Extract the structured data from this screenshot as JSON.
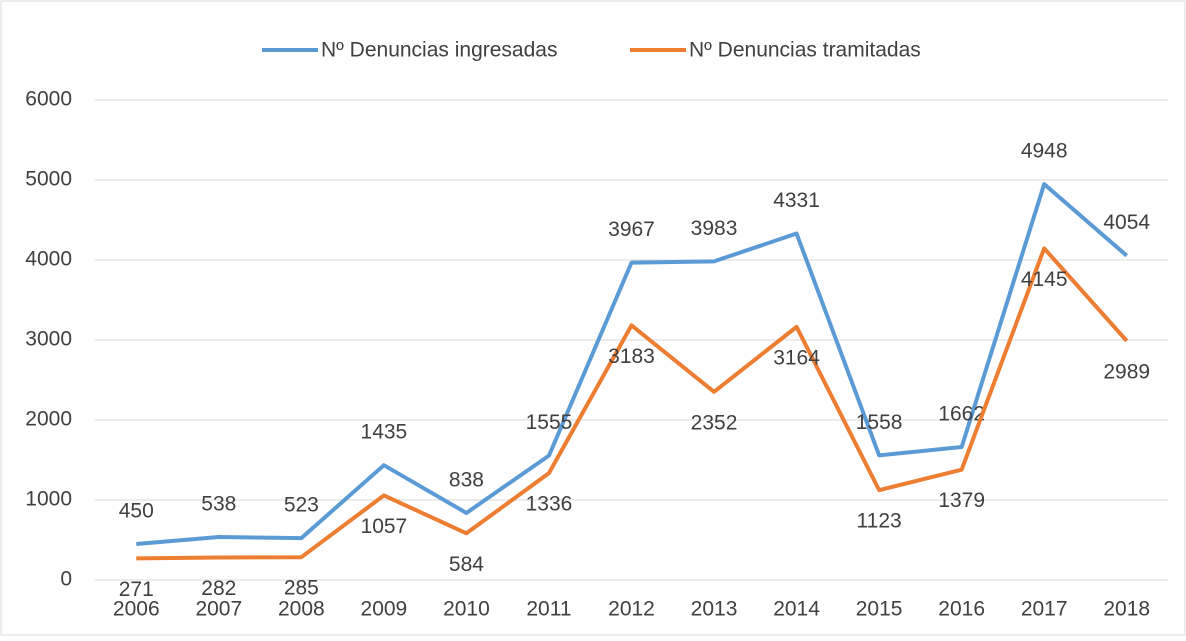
{
  "chart_data": {
    "type": "line",
    "categories": [
      "2006",
      "2007",
      "2008",
      "2009",
      "2010",
      "2011",
      "2012",
      "2013",
      "2014",
      "2015",
      "2016",
      "2017",
      "2018"
    ],
    "series": [
      {
        "name": "Nº Denuncias ingresadas",
        "color": "#5b9bd5",
        "values": [
          450,
          538,
          523,
          1435,
          838,
          1555,
          3967,
          3983,
          4331,
          1558,
          1662,
          4948,
          4054
        ]
      },
      {
        "name": "Nº Denuncias tramitadas",
        "color": "#ed7d31",
        "values": [
          271,
          282,
          285,
          1057,
          584,
          1336,
          3183,
          2352,
          3164,
          1123,
          1379,
          4145,
          2989
        ]
      }
    ],
    "ylim": [
      0,
      6000
    ],
    "yticks": [
      0,
      1000,
      2000,
      3000,
      4000,
      5000,
      6000
    ],
    "grid": true,
    "legend": "top"
  }
}
